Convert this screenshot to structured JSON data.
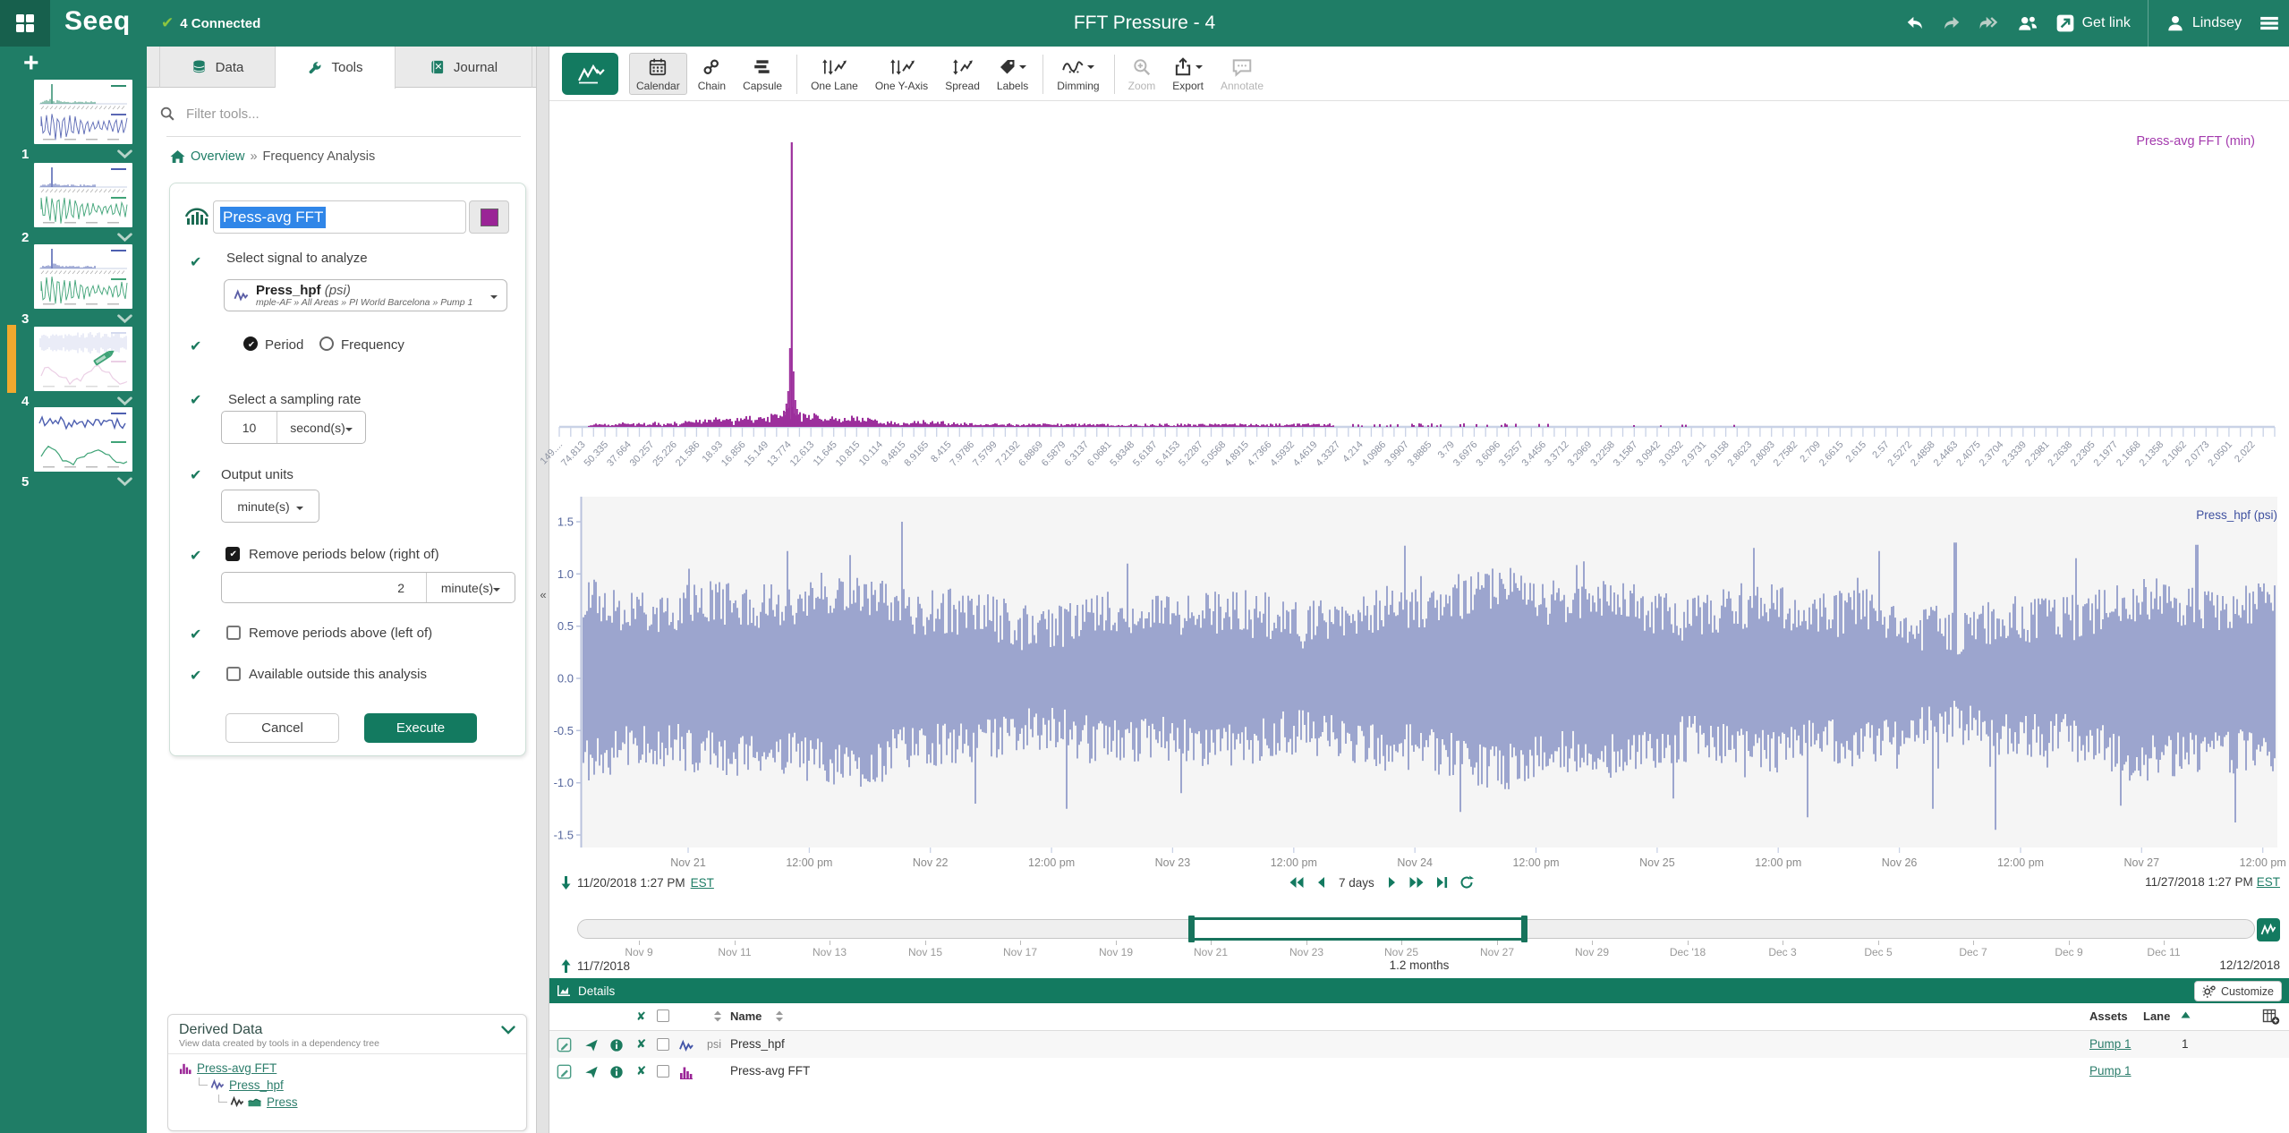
{
  "app": {
    "logo": "Seeq",
    "connected_label": "4 Connected",
    "title": "FFT Pressure - 4",
    "get_link_label": "Get link",
    "user_name": "Lindsey"
  },
  "sidebar": {
    "worksheets": [
      {
        "num": "1",
        "top_kind": "fft",
        "top_color": "#2f8c6e",
        "bottom_kind": "wave",
        "bottom_color": "#5a68b4",
        "selected": false,
        "editing": false
      },
      {
        "num": "2",
        "top_kind": "fft",
        "top_color": "#4d5fb0",
        "bottom_kind": "wave",
        "bottom_color": "#3fa377",
        "selected": false,
        "editing": false
      },
      {
        "num": "3",
        "top_kind": "fft",
        "top_color": "#4d5fb0",
        "bottom_kind": "wave",
        "bottom_color": "#3fa377",
        "selected": false,
        "editing": false
      },
      {
        "num": "4",
        "top_kind": "band",
        "top_color": "#aab6e0",
        "bottom_kind": "smooth",
        "bottom_color": "#d9a0cc",
        "selected": true,
        "editing": true
      },
      {
        "num": "5",
        "top_kind": "noisyline",
        "top_color": "#4d5fb0",
        "bottom_kind": "smooth",
        "bottom_color": "#3fa377",
        "selected": false,
        "editing": false
      }
    ]
  },
  "tools_panel": {
    "tabs": [
      {
        "label": "Data"
      },
      {
        "label": "Tools"
      },
      {
        "label": "Journal"
      }
    ],
    "filter_placeholder": "Filter tools...",
    "breadcrumb": {
      "root": "Overview",
      "separator": "»",
      "current": "Frequency Analysis"
    },
    "form": {
      "name_value": "Press-avg FFT",
      "swatch_color": "#9a2496",
      "signal_step_label": "Select signal to analyze",
      "signal_name": "Press_hpf",
      "signal_unit": "(psi)",
      "signal_path": "mple-AF » All Areas » PI World Barcelona » Pump 1",
      "radio_options": [
        "Period",
        "Frequency"
      ],
      "radio_selected": "Period",
      "sampling_label": "Select a sampling rate",
      "sampling_value": "10",
      "sampling_unit": "second(s)",
      "output_label": "Output units",
      "output_unit": "minute(s)",
      "remove_below_label": "Remove periods below (right of)",
      "remove_below_value": "2",
      "remove_below_unit": "minute(s)",
      "remove_below_checked": true,
      "remove_above_label": "Remove periods above (left of)",
      "remove_above_checked": false,
      "available_label": "Available outside this analysis",
      "available_checked": false,
      "cancel_label": "Cancel",
      "execute_label": "Execute"
    },
    "derived_data": {
      "title": "Derived Data",
      "subtitle": "View data created by tools in a dependency tree",
      "tree": [
        {
          "label": "Press-avg FFT",
          "icon": "fft",
          "depth": 0
        },
        {
          "label": "Press_hpf",
          "icon": "signal",
          "depth": 1
        },
        {
          "label": "Press",
          "icon": "signal-area",
          "depth": 2
        }
      ]
    }
  },
  "toolbar": {
    "items": [
      {
        "label": "Calendar",
        "active": true
      },
      {
        "label": "Chain"
      },
      {
        "label": "Capsule"
      },
      {
        "label": "One Lane"
      },
      {
        "label": "One Y-Axis"
      },
      {
        "label": "Spread"
      },
      {
        "label": "Labels"
      },
      {
        "label": "Dimming"
      },
      {
        "label": "Zoom",
        "disabled": true
      },
      {
        "label": "Export"
      },
      {
        "label": "Annotate",
        "disabled": true
      }
    ]
  },
  "chart_data": [
    {
      "type": "bar",
      "name": "Press-avg FFT",
      "label": "Press-avg FFT (min)",
      "series_color": "#9c2f9c",
      "x_axis_unit": "min",
      "ylim": [
        0,
        1
      ],
      "main_peak": {
        "period_label": "15.149",
        "position_frac": 0.1355,
        "relative_height": 1.0
      },
      "noise_floor": {
        "extent_frac": 0.44,
        "typical_height_frac": 0.02,
        "cluster_height_frac": 0.1
      },
      "x_tick_labels": [
        "149....",
        "74.813",
        "50.335",
        "37.664",
        "30.257",
        "25.226",
        "21.586",
        "18.93",
        "16.856",
        "15.149",
        "13.774",
        "12.613",
        "11.645",
        "10.815",
        "10.114",
        "9.4815",
        "8.9165",
        "8.415",
        "7.9786",
        "7.5799",
        "7.2192",
        "6.8869",
        "6.5879",
        "6.3137",
        "6.0681",
        "5.8348",
        "5.6187",
        "5.4153",
        "5.2287",
        "5.0568",
        "4.8915",
        "4.7366",
        "4.5932",
        "4.4619",
        "4.3327",
        "4.214",
        "4.0986",
        "3.9907",
        "3.8885",
        "3.79",
        "3.6976",
        "3.6096",
        "3.5257",
        "3.4456",
        "3.3712",
        "3.2969",
        "3.2258",
        "3.1587",
        "3.0942",
        "3.0332",
        "2.9731",
        "2.9158",
        "2.8623",
        "2.8093",
        "2.7582",
        "2.709",
        "2.6615",
        "2.615",
        "2.57",
        "2.5272",
        "2.4858",
        "2.4463",
        "2.4075",
        "2.3704",
        "2.3339",
        "2.2981",
        "2.2638",
        "2.2305",
        "2.1977",
        "2.1668",
        "2.1358",
        "2.1062",
        "2.0773",
        "2.0501",
        "2.022"
      ]
    },
    {
      "type": "line",
      "name": "Press_hpf",
      "label": "Press_hpf (psi)",
      "unit": "psi",
      "series_color": "#4355a8",
      "y_ticks": [
        "1.5",
        "1.0",
        "0.5",
        "0.0",
        "-0.5",
        "-1.0",
        "-1.5"
      ],
      "ylim": [
        -1.75,
        1.75
      ],
      "typical_amplitude": 0.9,
      "max_amplitude": 1.5,
      "x_tick_labels": [
        "Nov 21",
        "12:00 pm",
        "Nov 22",
        "12:00 pm",
        "Nov 23",
        "12:00 pm",
        "Nov 24",
        "12:00 pm",
        "Nov 25",
        "12:00 pm",
        "Nov 26",
        "12:00 pm",
        "Nov 27",
        "12:00 pm"
      ]
    }
  ],
  "range": {
    "start_date": "11/20/2018 1:27 PM",
    "start_tz": "EST",
    "duration_label": "7 days",
    "end_date": "11/27/2018 1:27 PM",
    "end_tz": "EST"
  },
  "investigate": {
    "start_date": "11/7/2018",
    "duration_label": "1.2 months",
    "end_date": "12/12/2018",
    "tick_labels": [
      "Nov 9",
      "Nov 11",
      "Nov 13",
      "Nov 15",
      "Nov 17",
      "Nov 19",
      "Nov 21",
      "Nov 23",
      "Nov 25",
      "Nov 27",
      "Nov 29",
      "Dec '18",
      "Dec 3",
      "Dec 5",
      "Dec 7",
      "Dec 9",
      "Dec 11"
    ]
  },
  "details": {
    "title": "Details",
    "customize_label": "Customize",
    "name_column": "Name",
    "assets_column": "Assets",
    "lane_column": "Lane",
    "rows": [
      {
        "icon": "signal",
        "unit": "psi",
        "name": "Press_hpf",
        "asset": "Pump 1",
        "lane": "1"
      },
      {
        "icon": "fft",
        "unit": "",
        "name": "Press-avg FFT",
        "asset": "Pump 1",
        "lane": ""
      }
    ]
  }
}
